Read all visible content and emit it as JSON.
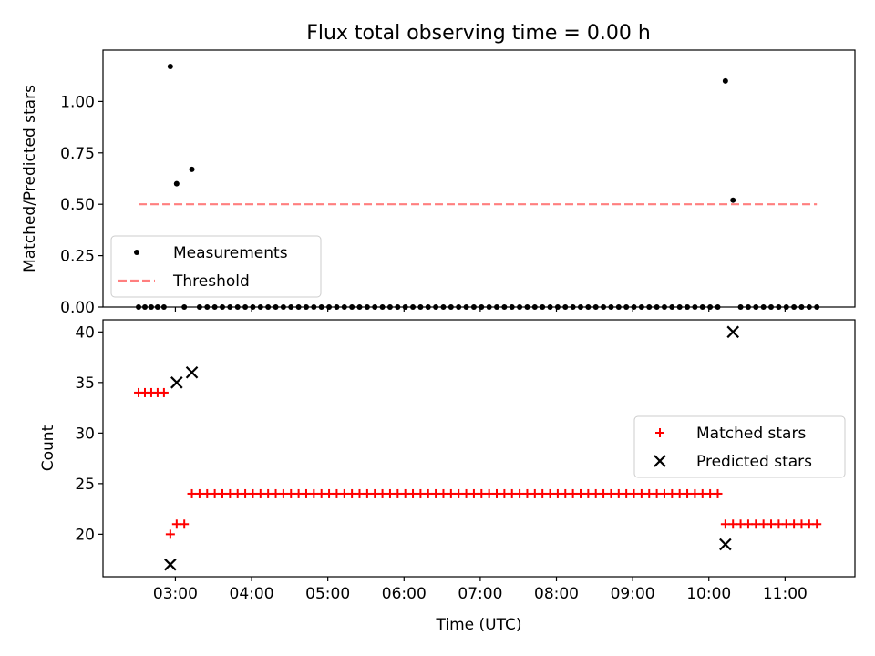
{
  "title": "Flux total observing time = 0.00 h",
  "chart_data": [
    {
      "type": "scatter",
      "panel": "top",
      "title": "Flux total observing time = 0.00 h",
      "xlabel": "",
      "ylabel": "Matched/Predicted stars",
      "xlim": [
        "02:03",
        "11:55"
      ],
      "ylim": [
        0,
        1.25
      ],
      "yticks": [
        0.0,
        0.25,
        0.5,
        0.75,
        1.0
      ],
      "ytick_labels": [
        "0.00",
        "0.25",
        "0.50",
        "0.75",
        "1.00"
      ],
      "legend": {
        "position": "lower-left",
        "entries": [
          "Measurements",
          "Threshold"
        ]
      },
      "series": [
        {
          "name": "Measurements",
          "marker": "dot",
          "color": "#000000",
          "points": [
            [
              "02:31",
              0
            ],
            [
              "02:36",
              0
            ],
            [
              "02:41",
              0
            ],
            [
              "02:46",
              0
            ],
            [
              "02:51",
              0
            ],
            [
              "02:56",
              1.17
            ],
            [
              "03:01",
              0.6
            ],
            [
              "03:07",
              0
            ],
            [
              "03:13",
              0.67
            ],
            [
              "03:19",
              0
            ],
            [
              "03:25",
              0
            ],
            [
              "03:31",
              0
            ],
            [
              "03:37",
              0
            ],
            [
              "03:43",
              0
            ],
            [
              "03:49",
              0
            ],
            [
              "03:55",
              0
            ],
            [
              "04:01",
              0
            ],
            [
              "04:07",
              0
            ],
            [
              "04:13",
              0
            ],
            [
              "04:19",
              0
            ],
            [
              "04:25",
              0
            ],
            [
              "04:31",
              0
            ],
            [
              "04:37",
              0
            ],
            [
              "04:43",
              0
            ],
            [
              "04:49",
              0
            ],
            [
              "04:55",
              0
            ],
            [
              "05:01",
              0
            ],
            [
              "05:07",
              0
            ],
            [
              "05:13",
              0
            ],
            [
              "05:19",
              0
            ],
            [
              "05:25",
              0
            ],
            [
              "05:31",
              0
            ],
            [
              "05:37",
              0
            ],
            [
              "05:43",
              0
            ],
            [
              "05:49",
              0
            ],
            [
              "05:55",
              0
            ],
            [
              "06:01",
              0
            ],
            [
              "06:07",
              0
            ],
            [
              "06:13",
              0
            ],
            [
              "06:19",
              0
            ],
            [
              "06:25",
              0
            ],
            [
              "06:31",
              0
            ],
            [
              "06:37",
              0
            ],
            [
              "06:43",
              0
            ],
            [
              "06:49",
              0
            ],
            [
              "06:55",
              0
            ],
            [
              "07:01",
              0
            ],
            [
              "07:07",
              0
            ],
            [
              "07:13",
              0
            ],
            [
              "07:19",
              0
            ],
            [
              "07:25",
              0
            ],
            [
              "07:31",
              0
            ],
            [
              "07:37",
              0
            ],
            [
              "07:43",
              0
            ],
            [
              "07:49",
              0
            ],
            [
              "07:55",
              0
            ],
            [
              "08:01",
              0
            ],
            [
              "08:07",
              0
            ],
            [
              "08:13",
              0
            ],
            [
              "08:19",
              0
            ],
            [
              "08:25",
              0
            ],
            [
              "08:31",
              0
            ],
            [
              "08:37",
              0
            ],
            [
              "08:43",
              0
            ],
            [
              "08:49",
              0
            ],
            [
              "08:55",
              0
            ],
            [
              "09:01",
              0
            ],
            [
              "09:07",
              0
            ],
            [
              "09:13",
              0
            ],
            [
              "09:19",
              0
            ],
            [
              "09:25",
              0
            ],
            [
              "09:31",
              0
            ],
            [
              "09:37",
              0
            ],
            [
              "09:43",
              0
            ],
            [
              "09:49",
              0
            ],
            [
              "09:55",
              0
            ],
            [
              "10:01",
              0
            ],
            [
              "10:07",
              0
            ],
            [
              "10:13",
              1.1
            ],
            [
              "10:19",
              0.52
            ],
            [
              "10:25",
              0
            ],
            [
              "10:31",
              0
            ],
            [
              "10:37",
              0
            ],
            [
              "10:43",
              0
            ],
            [
              "10:49",
              0
            ],
            [
              "10:55",
              0
            ],
            [
              "11:01",
              0
            ],
            [
              "11:07",
              0
            ],
            [
              "11:13",
              0
            ],
            [
              "11:19",
              0
            ],
            [
              "11:25",
              0
            ]
          ]
        },
        {
          "name": "Threshold",
          "marker": "dashed-line",
          "color": "#ff7f7f",
          "points": [
            [
              "02:31",
              0.5
            ],
            [
              "11:25",
              0.5
            ]
          ]
        }
      ]
    },
    {
      "type": "scatter",
      "panel": "bottom",
      "xlabel": "Time (UTC)",
      "ylabel": "Count",
      "xlim": [
        "02:03",
        "11:55"
      ],
      "ylim": [
        15.8,
        41.2
      ],
      "xticks": [
        "03:00",
        "04:00",
        "05:00",
        "06:00",
        "07:00",
        "08:00",
        "09:00",
        "10:00",
        "11:00"
      ],
      "yticks": [
        20,
        25,
        30,
        35,
        40
      ],
      "legend": {
        "position": "center-right",
        "entries": [
          "Matched stars",
          "Predicted stars"
        ]
      },
      "series": [
        {
          "name": "Matched stars",
          "marker": "plus",
          "color": "#ff0000",
          "points": [
            [
              "02:31",
              34
            ],
            [
              "02:36",
              34
            ],
            [
              "02:41",
              34
            ],
            [
              "02:46",
              34
            ],
            [
              "02:51",
              34
            ],
            [
              "02:56",
              20
            ],
            [
              "03:01",
              21
            ],
            [
              "03:07",
              21
            ],
            [
              "03:13",
              24
            ],
            [
              "03:19",
              24
            ],
            [
              "03:25",
              24
            ],
            [
              "03:31",
              24
            ],
            [
              "03:37",
              24
            ],
            [
              "03:43",
              24
            ],
            [
              "03:49",
              24
            ],
            [
              "03:55",
              24
            ],
            [
              "04:01",
              24
            ],
            [
              "04:07",
              24
            ],
            [
              "04:13",
              24
            ],
            [
              "04:19",
              24
            ],
            [
              "04:25",
              24
            ],
            [
              "04:31",
              24
            ],
            [
              "04:37",
              24
            ],
            [
              "04:43",
              24
            ],
            [
              "04:49",
              24
            ],
            [
              "04:55",
              24
            ],
            [
              "05:01",
              24
            ],
            [
              "05:07",
              24
            ],
            [
              "05:13",
              24
            ],
            [
              "05:19",
              24
            ],
            [
              "05:25",
              24
            ],
            [
              "05:31",
              24
            ],
            [
              "05:37",
              24
            ],
            [
              "05:43",
              24
            ],
            [
              "05:49",
              24
            ],
            [
              "05:55",
              24
            ],
            [
              "06:01",
              24
            ],
            [
              "06:07",
              24
            ],
            [
              "06:13",
              24
            ],
            [
              "06:19",
              24
            ],
            [
              "06:25",
              24
            ],
            [
              "06:31",
              24
            ],
            [
              "06:37",
              24
            ],
            [
              "06:43",
              24
            ],
            [
              "06:49",
              24
            ],
            [
              "06:55",
              24
            ],
            [
              "07:01",
              24
            ],
            [
              "07:07",
              24
            ],
            [
              "07:13",
              24
            ],
            [
              "07:19",
              24
            ],
            [
              "07:25",
              24
            ],
            [
              "07:31",
              24
            ],
            [
              "07:37",
              24
            ],
            [
              "07:43",
              24
            ],
            [
              "07:49",
              24
            ],
            [
              "07:55",
              24
            ],
            [
              "08:01",
              24
            ],
            [
              "08:07",
              24
            ],
            [
              "08:13",
              24
            ],
            [
              "08:19",
              24
            ],
            [
              "08:25",
              24
            ],
            [
              "08:31",
              24
            ],
            [
              "08:37",
              24
            ],
            [
              "08:43",
              24
            ],
            [
              "08:49",
              24
            ],
            [
              "08:55",
              24
            ],
            [
              "09:01",
              24
            ],
            [
              "09:07",
              24
            ],
            [
              "09:13",
              24
            ],
            [
              "09:19",
              24
            ],
            [
              "09:25",
              24
            ],
            [
              "09:31",
              24
            ],
            [
              "09:37",
              24
            ],
            [
              "09:43",
              24
            ],
            [
              "09:49",
              24
            ],
            [
              "09:55",
              24
            ],
            [
              "10:01",
              24
            ],
            [
              "10:07",
              24
            ],
            [
              "10:13",
              21
            ],
            [
              "10:19",
              21
            ],
            [
              "10:25",
              21
            ],
            [
              "10:31",
              21
            ],
            [
              "10:37",
              21
            ],
            [
              "10:43",
              21
            ],
            [
              "10:49",
              21
            ],
            [
              "10:55",
              21
            ],
            [
              "11:01",
              21
            ],
            [
              "11:07",
              21
            ],
            [
              "11:13",
              21
            ],
            [
              "11:19",
              21
            ],
            [
              "11:25",
              21
            ]
          ]
        },
        {
          "name": "Predicted stars",
          "marker": "x",
          "color": "#000000",
          "points": [
            [
              "02:56",
              17
            ],
            [
              "03:01",
              35
            ],
            [
              "03:13",
              36
            ],
            [
              "10:13",
              19
            ],
            [
              "10:19",
              40
            ]
          ]
        }
      ]
    }
  ]
}
